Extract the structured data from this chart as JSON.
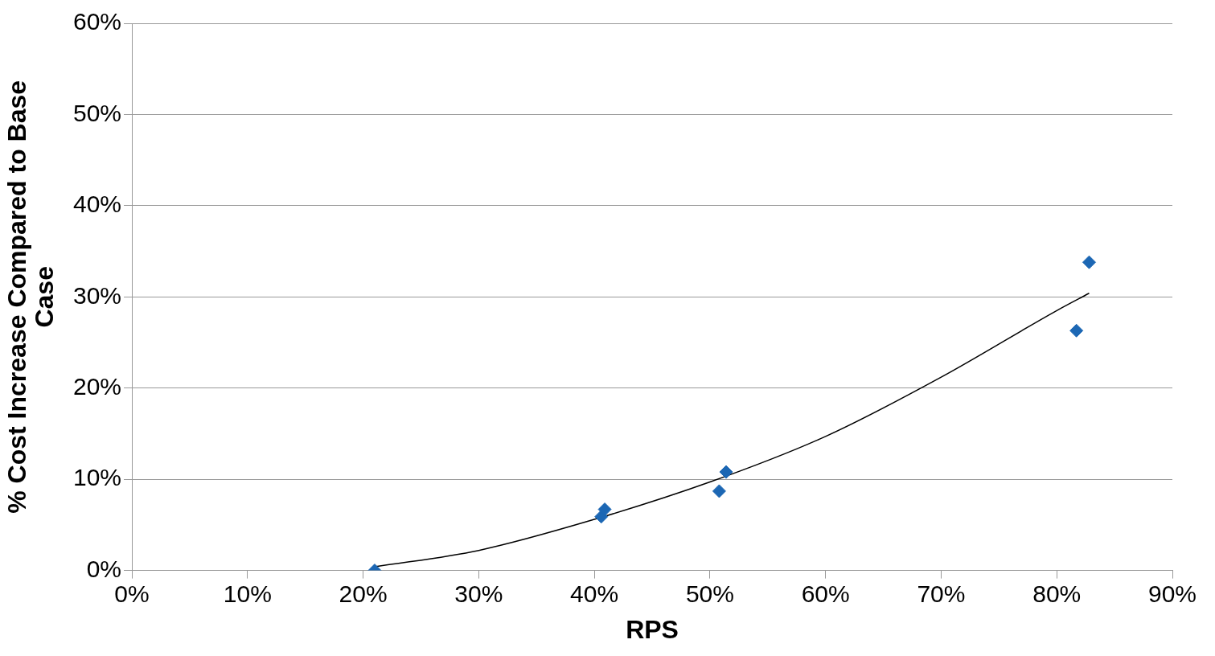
{
  "chart_data": {
    "type": "scatter",
    "xlabel": "RPS",
    "ylabel": "% Cost Increase Compared to Base Case",
    "xlim": [
      0,
      90
    ],
    "ylim": [
      0,
      60
    ],
    "xticks": [
      {
        "value": 0,
        "label": "0%"
      },
      {
        "value": 10,
        "label": "10%"
      },
      {
        "value": 20,
        "label": "20%"
      },
      {
        "value": 30,
        "label": "30%"
      },
      {
        "value": 40,
        "label": "40%"
      },
      {
        "value": 50,
        "label": "50%"
      },
      {
        "value": 60,
        "label": "60%"
      },
      {
        "value": 70,
        "label": "70%"
      },
      {
        "value": 80,
        "label": "80%"
      },
      {
        "value": 90,
        "label": "90%"
      }
    ],
    "yticks": [
      {
        "value": 0,
        "label": "0%"
      },
      {
        "value": 10,
        "label": "10%"
      },
      {
        "value": 20,
        "label": "20%"
      },
      {
        "value": 30,
        "label": "30%"
      },
      {
        "value": 40,
        "label": "40%"
      },
      {
        "value": 50,
        "label": "50%"
      },
      {
        "value": 60,
        "label": "60%"
      }
    ],
    "grid": "y",
    "marker": "diamond",
    "series": [
      {
        "type": "scatter",
        "color": "#1c67b4",
        "x": [
          21,
          40.6,
          40.9,
          50.8,
          51.4,
          81.7,
          82.8
        ],
        "values": [
          0,
          5.9,
          6.7,
          8.7,
          10.8,
          26.3,
          33.8
        ]
      },
      {
        "type": "line",
        "color": "#000000",
        "marker": "none",
        "line_style": "solid",
        "x": [
          21,
          30,
          40,
          50,
          60,
          70,
          80,
          82.8
        ],
        "values": [
          0.4,
          2.2,
          5.6,
          9.7,
          14.7,
          21.2,
          28.5,
          30.4
        ]
      }
    ]
  }
}
